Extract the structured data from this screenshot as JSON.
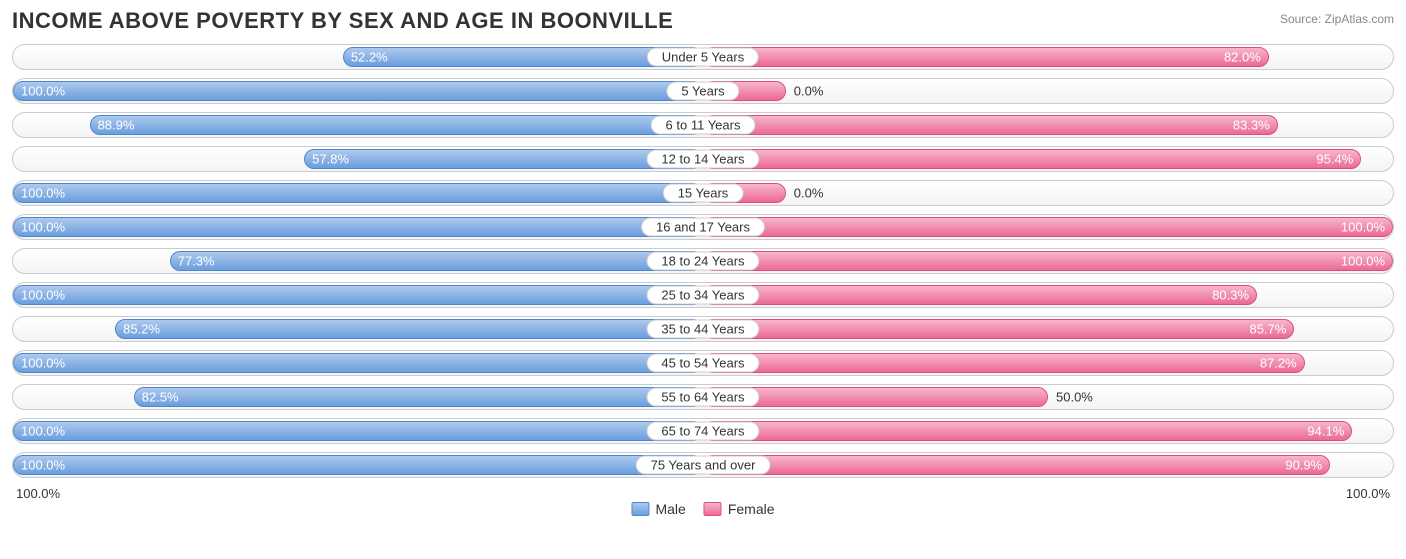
{
  "title": "INCOME ABOVE POVERTY BY SEX AND AGE IN BOONVILLE",
  "source": "Source: ZipAtlas.com",
  "colors": {
    "male_fill_top": "#aec9ed",
    "male_fill_bottom": "#6a9ede",
    "male_border": "#4f87cf",
    "female_fill_top": "#f7b6ca",
    "female_fill_bottom": "#ec6a93",
    "female_border": "#e04e7d",
    "row_border": "#cccccc",
    "text": "#333333",
    "label_inside": "#ffffff",
    "label_outside": "#333333"
  },
  "axis": {
    "left": "100.0%",
    "right": "100.0%"
  },
  "legend": {
    "male": "Male",
    "female": "Female"
  },
  "inside_threshold": 50,
  "rows": [
    {
      "category": "Under 5 Years",
      "male": 52.2,
      "female": 82.0
    },
    {
      "category": "5 Years",
      "male": 100.0,
      "female": 0.0
    },
    {
      "category": "6 to 11 Years",
      "male": 88.9,
      "female": 83.3
    },
    {
      "category": "12 to 14 Years",
      "male": 57.8,
      "female": 95.4
    },
    {
      "category": "15 Years",
      "male": 100.0,
      "female": 0.0
    },
    {
      "category": "16 and 17 Years",
      "male": 100.0,
      "female": 100.0
    },
    {
      "category": "18 to 24 Years",
      "male": 77.3,
      "female": 100.0
    },
    {
      "category": "25 to 34 Years",
      "male": 100.0,
      "female": 80.3
    },
    {
      "category": "35 to 44 Years",
      "male": 85.2,
      "female": 85.7
    },
    {
      "category": "45 to 54 Years",
      "male": 100.0,
      "female": 87.2
    },
    {
      "category": "55 to 64 Years",
      "male": 82.5,
      "female": 50.0
    },
    {
      "category": "65 to 74 Years",
      "male": 100.0,
      "female": 94.1
    },
    {
      "category": "75 Years and over",
      "male": 100.0,
      "female": 90.9
    }
  ],
  "zero_bar_width_pct": 12
}
